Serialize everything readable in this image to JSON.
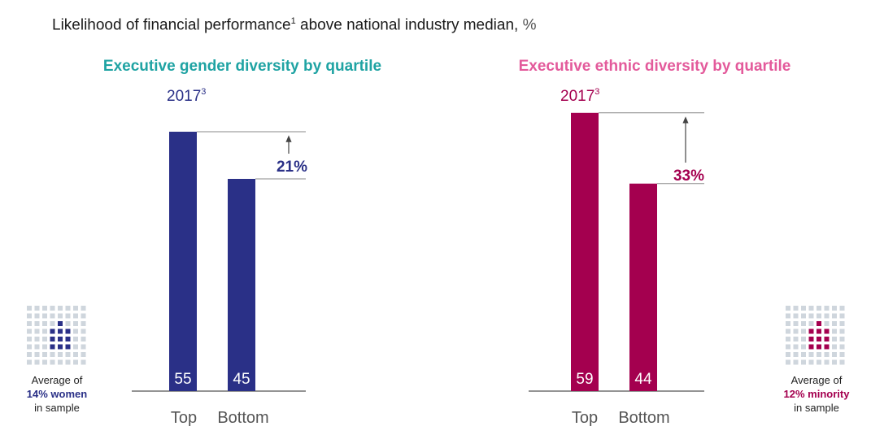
{
  "title": {
    "text": "Likelihood of financial performance",
    "footnote": "1",
    "rest": " above national industry median,",
    "unit": "%"
  },
  "colors": {
    "gender": "#2a3087",
    "gender_title": "#1fa3a3",
    "ethnic": "#a4004f",
    "ethnic_title": "#e35a9b",
    "dot_light": "#cfd6dd",
    "axis": "#555555"
  },
  "chart_data": [
    {
      "type": "bar",
      "title": "Executive gender diversity by quartile",
      "year": "2017",
      "year_footnote": "3",
      "categories": [
        "Top",
        "Bottom"
      ],
      "values": [
        55,
        45
      ],
      "difference_label": "21%",
      "ylim": [
        0,
        60
      ],
      "note": {
        "line1": "Average of",
        "highlight": "14% women",
        "line3": "in sample"
      },
      "icon_highlight_fraction": 0.14
    },
    {
      "type": "bar",
      "title": "Executive ethnic diversity by quartile",
      "year": "2017",
      "year_footnote": "3",
      "categories": [
        "Top",
        "Bottom"
      ],
      "values": [
        59,
        44
      ],
      "difference_label": "33%",
      "ylim": [
        0,
        60
      ],
      "note": {
        "line1": "Average of",
        "highlight": "12% minority",
        "line3": "in sample"
      },
      "icon_highlight_fraction": 0.12
    }
  ]
}
